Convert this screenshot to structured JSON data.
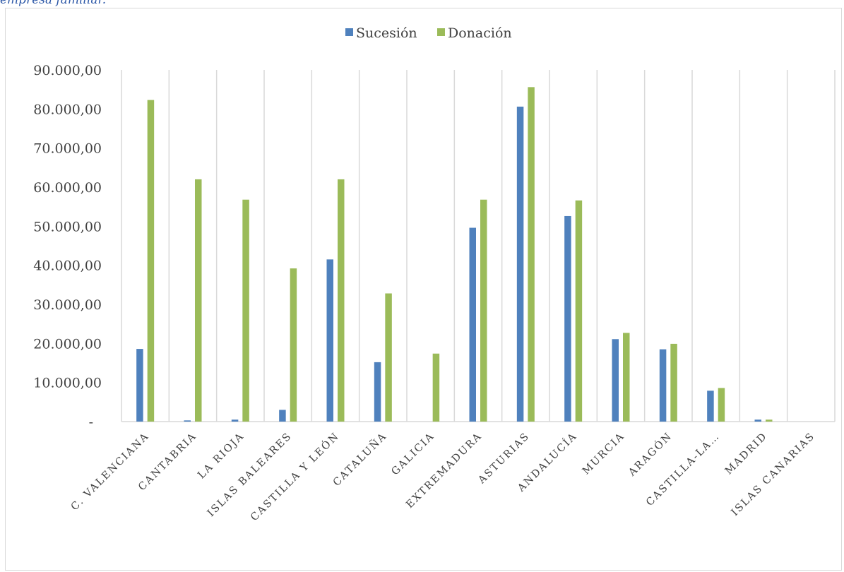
{
  "caption": "empresa familiar.",
  "chart_data": {
    "type": "bar",
    "title": "",
    "xlabel": "",
    "ylabel": "",
    "ylim": [
      0,
      90000
    ],
    "y_ticks": [
      {
        "value": 0,
        "label": "-"
      },
      {
        "value": 10000,
        "label": "10.000,00"
      },
      {
        "value": 20000,
        "label": "20.000,00"
      },
      {
        "value": 30000,
        "label": "30.000,00"
      },
      {
        "value": 40000,
        "label": "40.000,00"
      },
      {
        "value": 50000,
        "label": "50.000,00"
      },
      {
        "value": 60000,
        "label": "60.000,00"
      },
      {
        "value": 70000,
        "label": "70.000,00"
      },
      {
        "value": 80000,
        "label": "80.000,00"
      },
      {
        "value": 90000,
        "label": "90.000,00"
      }
    ],
    "grid": "vertical",
    "legend_position": "top-center",
    "categories": [
      "C. VALENCIANA",
      "CANTABRIA",
      "LA RIOJA",
      "ISLAS BALEARES",
      "CASTILLA Y LEÓN",
      "CATALUÑA",
      "GALICIA",
      "EXTREMADURA",
      "ASTURIAS",
      "ANDALUCÍA",
      "MURCIA",
      "ARAGÓN",
      "CASTILLA-LA…",
      "MADRID",
      "ISLAS CANARIAS"
    ],
    "series": [
      {
        "name": "Sucesión",
        "color": "#4f81bd",
        "values": [
          18600,
          300,
          500,
          3000,
          41500,
          15200,
          0,
          49600,
          80600,
          52600,
          21100,
          18500,
          7900,
          500,
          0
        ]
      },
      {
        "name": "Donación",
        "color": "#9bbb59",
        "values": [
          82300,
          62000,
          56800,
          39200,
          62000,
          32800,
          17400,
          56800,
          85600,
          56600,
          22700,
          19900,
          8600,
          500,
          0
        ]
      }
    ]
  }
}
